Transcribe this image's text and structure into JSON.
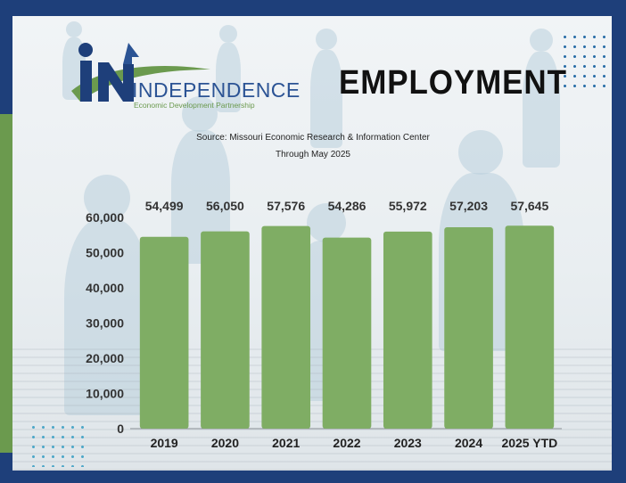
{
  "brand": {
    "name": "INDEPENDENCE",
    "tagline": "Economic Development Partnership",
    "colors": {
      "navy": "#1e3f7a",
      "blue": "#2b5394",
      "green": "#6b9a4e",
      "bar": "#7fad64"
    }
  },
  "headline": "EMPLOYMENT",
  "source_line": "Source: Missouri Economic Research & Information Center",
  "period_line": "Through May 2025",
  "chart_data": {
    "type": "bar",
    "categories": [
      "2019",
      "2020",
      "2021",
      "2022",
      "2023",
      "2024",
      "2025 YTD"
    ],
    "values": [
      54499,
      56050,
      57576,
      54286,
      55972,
      57203,
      57645
    ],
    "value_labels": [
      "54,499",
      "56,050",
      "57,576",
      "54,286",
      "55,972",
      "57,203",
      "57,645"
    ],
    "ylim": [
      0,
      60000
    ],
    "yticks": [
      0,
      10000,
      20000,
      30000,
      40000,
      50000,
      60000
    ],
    "ytick_labels": [
      "0",
      "10,000",
      "20,000",
      "30,000",
      "40,000",
      "50,000",
      "60,000"
    ],
    "grid": false,
    "legend": "none",
    "bar_color": "#7fad64"
  }
}
